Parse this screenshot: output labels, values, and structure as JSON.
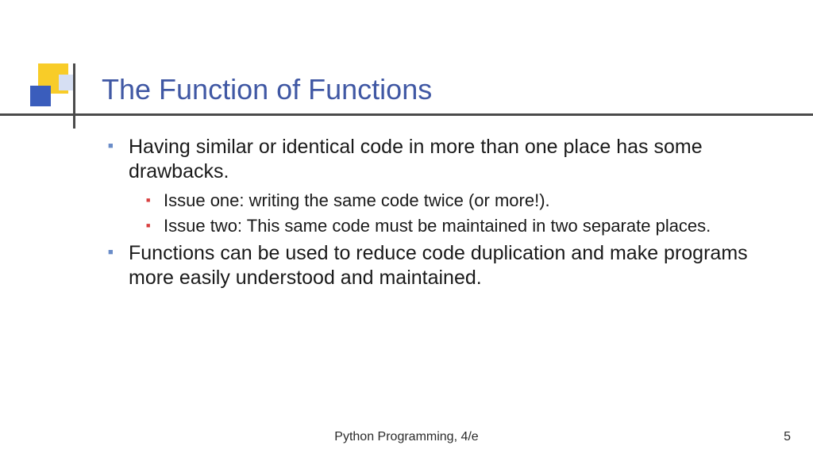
{
  "title": "The Function of Functions",
  "bullets": {
    "b1": "Having similar or identical code in more than one place has some drawbacks.",
    "b1_sub1": "Issue one: writing the same code twice (or more!).",
    "b1_sub2": "Issue two: This same code must be maintained in two separate places.",
    "b2": "Functions can be used to reduce code duplication and make programs more easily understood and maintained."
  },
  "footer": {
    "center": "Python Programming, 4/e",
    "page": "5"
  },
  "colors": {
    "title": "#4058a4",
    "bullet_l1": "#6a8cc8",
    "bullet_l2": "#d84040",
    "yellow": "#f8cc28",
    "blue": "#3a5dbc",
    "line": "#4a4a4a",
    "background": "#ffffff"
  },
  "fontsize": {
    "title": 36,
    "body_l1": 25,
    "body_l2": 22,
    "footer": 16
  }
}
